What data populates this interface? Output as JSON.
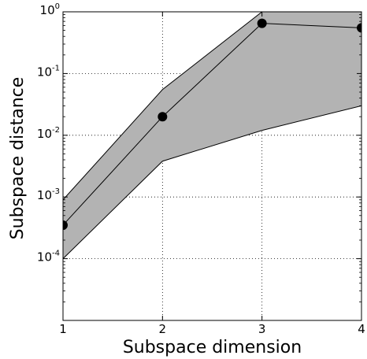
{
  "chart_data": {
    "type": "line",
    "title": "",
    "xlabel": "Subspace dimension",
    "ylabel": "Subspace distance",
    "xscale": "linear",
    "yscale": "log",
    "xlim": [
      1,
      4
    ],
    "ylim": [
      1e-05,
      1
    ],
    "grid": true,
    "grid_style": "dotted",
    "x": [
      1,
      2,
      3,
      4
    ],
    "series": [
      {
        "values": [
          0.00035,
          0.02,
          0.65,
          0.55
        ],
        "lower": [
          0.0001,
          0.0038,
          0.012,
          0.03
        ],
        "upper": [
          0.0009,
          0.055,
          1.0,
          1.0
        ],
        "line_color": "#000000",
        "marker": "circle",
        "band_color": "#b3b3b3"
      }
    ],
    "x_ticks": [
      {
        "value": 1,
        "label": "1"
      },
      {
        "value": 2,
        "label": "2"
      },
      {
        "value": 3,
        "label": "3"
      },
      {
        "value": 4,
        "label": "4"
      }
    ],
    "y_ticks": [
      {
        "value": 1,
        "base": "10",
        "exp": "0"
      },
      {
        "value": 0.1,
        "base": "10",
        "exp": "-1"
      },
      {
        "value": 0.01,
        "base": "10",
        "exp": "-2"
      },
      {
        "value": 0.001,
        "base": "10",
        "exp": "-3"
      },
      {
        "value": 0.0001,
        "base": "10",
        "exp": "-4"
      }
    ]
  }
}
